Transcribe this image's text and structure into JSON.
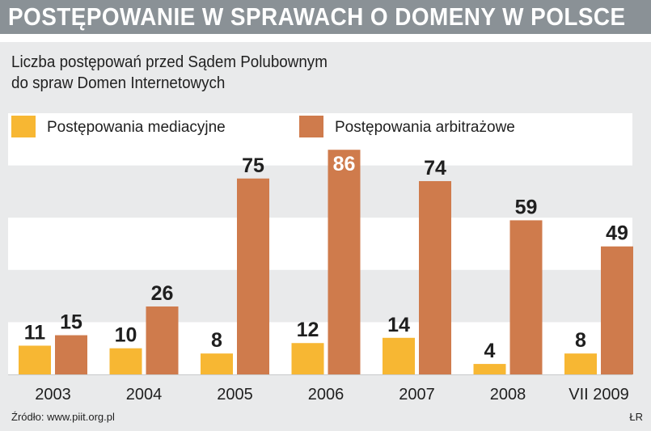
{
  "header": {
    "title": "POSTĘPOWANIE W SPRAWACH O DOMENY W POLSCE"
  },
  "subtitle": {
    "line1": "Liczba postępowań przed Sądem Polubownym",
    "line2": "do spraw Domen Internetowych"
  },
  "chart_data": {
    "type": "bar",
    "title": "Liczba postępowań przed Sądem Polubownym do spraw Domen Internetowych",
    "categories": [
      "2003",
      "2004",
      "2005",
      "2006",
      "2007",
      "2008",
      "VII 2009"
    ],
    "series": [
      {
        "name": "Postępowania mediacyjne",
        "color": "#f7b733",
        "values": [
          11,
          10,
          8,
          12,
          14,
          4,
          8
        ]
      },
      {
        "name": "Postępowania arbitrażowe",
        "color": "#cf7b4c",
        "values": [
          15,
          26,
          75,
          86,
          74,
          59,
          49
        ]
      }
    ],
    "ylim": [
      0,
      100
    ],
    "grid": true,
    "legend": "top-left",
    "highlight": {
      "series": 1,
      "index": 3
    }
  },
  "footer": {
    "source": "Źródło: www.piit.org.pl",
    "credit": "ŁR"
  }
}
